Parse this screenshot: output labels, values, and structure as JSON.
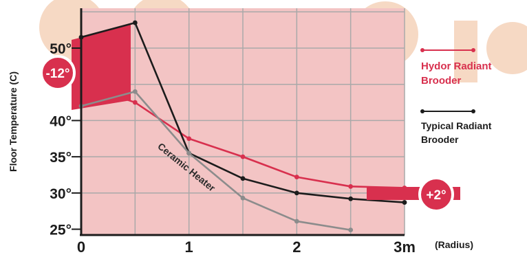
{
  "chart_data": {
    "type": "line",
    "ylabel": "Floor Temperature (C)",
    "xlabel": "(Radius)",
    "x_ticks": [
      "0",
      "",
      "1",
      "",
      "2",
      "",
      "3m"
    ],
    "y_ticks": [
      "25°",
      "30°",
      "35°",
      "40°",
      "50°"
    ],
    "xlim": [
      0,
      3
    ],
    "ylim": [
      24.2,
      55.5
    ],
    "grid": true,
    "legend_position": "right",
    "series": [
      {
        "name": "Hydor Radiant Brooder",
        "color": "#d8304e",
        "x": [
          0,
          0.5,
          1,
          1.5,
          2,
          2.5,
          3
        ],
        "y": [
          45.0,
          42.5,
          37.5,
          35.0,
          32.2,
          30.9,
          30.7
        ]
      },
      {
        "name": "Typical Radiant Brooder",
        "color": "#1c1c1c",
        "x": [
          0,
          0.5,
          1,
          1.5,
          2,
          2.5,
          3
        ],
        "y": [
          51.5,
          53.5,
          35.5,
          32.0,
          30.0,
          29.2,
          28.7
        ]
      },
      {
        "name": "",
        "color": "#8c8c8c",
        "x": [
          0,
          0.5,
          1,
          1.5,
          2,
          2.5
        ],
        "y": [
          42.0,
          44.0,
          35.5,
          29.3,
          26.1,
          24.9
        ]
      }
    ],
    "annotations": {
      "ceramic_heater": "Ceramic Heater",
      "diff_left": "-12°",
      "diff_right": "+2°"
    },
    "colors": {
      "plot_bg": "#f3c4c4",
      "grid": "#a9a9a9",
      "accent": "#d8304e",
      "band": "#d8304e",
      "watermark": "#f6d9c4"
    }
  }
}
